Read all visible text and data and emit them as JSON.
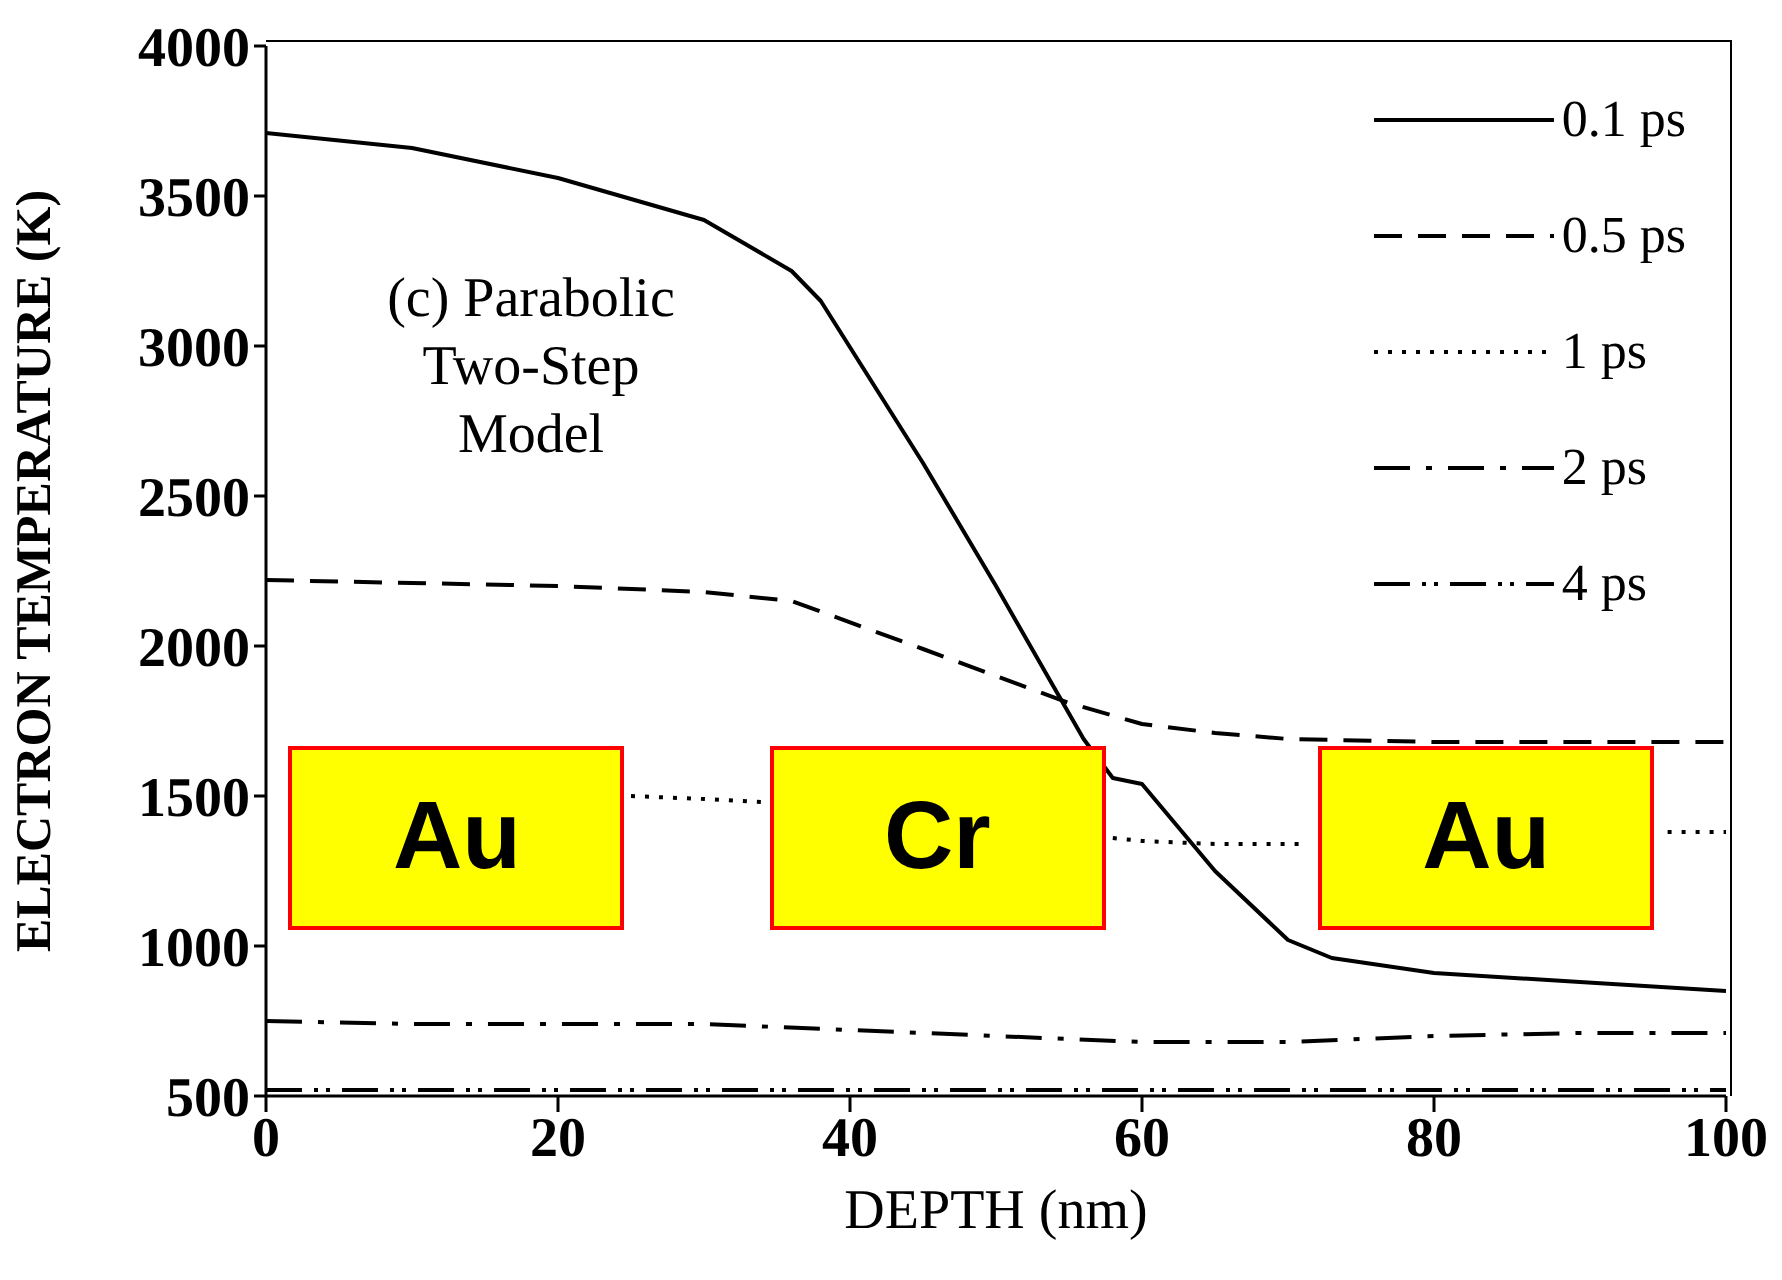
{
  "chart_data": {
    "type": "line",
    "xlabel": "DEPTH (nm)",
    "ylabel": "ELECTRON TEMPERATURE (K)",
    "xlim": [
      0,
      100
    ],
    "ylim": [
      500,
      4000
    ],
    "xticks": [
      0,
      20,
      40,
      60,
      80,
      100
    ],
    "yticks": [
      500,
      1000,
      1500,
      2000,
      2500,
      3000,
      3500,
      4000
    ],
    "legend": "top right",
    "marker": "none",
    "series": [
      {
        "name": "0.1 ps",
        "color": "#000000",
        "line_style": "solid",
        "x": [
          0,
          10,
          20,
          30,
          36,
          38,
          45,
          50,
          56,
          58,
          60,
          65,
          70,
          73,
          80,
          90,
          100
        ],
        "values": [
          3710,
          3660,
          3560,
          3420,
          3250,
          3150,
          2610,
          2200,
          1690,
          1560,
          1540,
          1250,
          1020,
          960,
          910,
          880,
          850
        ]
      },
      {
        "name": "0.5 ps",
        "color": "#000000",
        "line_style": "dashed",
        "x": [
          0,
          10,
          20,
          30,
          36,
          45,
          55,
          60,
          65,
          70,
          80,
          90,
          100
        ],
        "values": [
          2220,
          2210,
          2200,
          2180,
          2150,
          1990,
          1810,
          1740,
          1710,
          1690,
          1680,
          1680,
          1680
        ]
      },
      {
        "name": "1 ps",
        "color": "#000000",
        "line_style": "dotted",
        "x": [
          25,
          30,
          34,
          40,
          58,
          60,
          65,
          71,
          72,
          95,
          96,
          100
        ],
        "values": [
          1500,
          1490,
          1480,
          null,
          1360,
          1350,
          1340,
          1340,
          null,
          null,
          1380,
          1380
        ]
      },
      {
        "name": "2 ps",
        "color": "#000000",
        "line_style": "dashdot",
        "x": [
          0,
          10,
          20,
          30,
          40,
          50,
          60,
          70,
          80,
          90,
          100
        ],
        "values": [
          750,
          740,
          740,
          740,
          720,
          700,
          680,
          680,
          700,
          710,
          710
        ]
      },
      {
        "name": "4 ps",
        "color": "#000000",
        "line_style": "dashdotdot",
        "x": [
          0,
          20,
          40,
          60,
          80,
          100
        ],
        "values": [
          520,
          520,
          520,
          520,
          520,
          520
        ]
      }
    ],
    "annotations": [
      "(c) Parabolic Two-Step Model",
      "Au",
      "Cr",
      "Au"
    ]
  }
}
